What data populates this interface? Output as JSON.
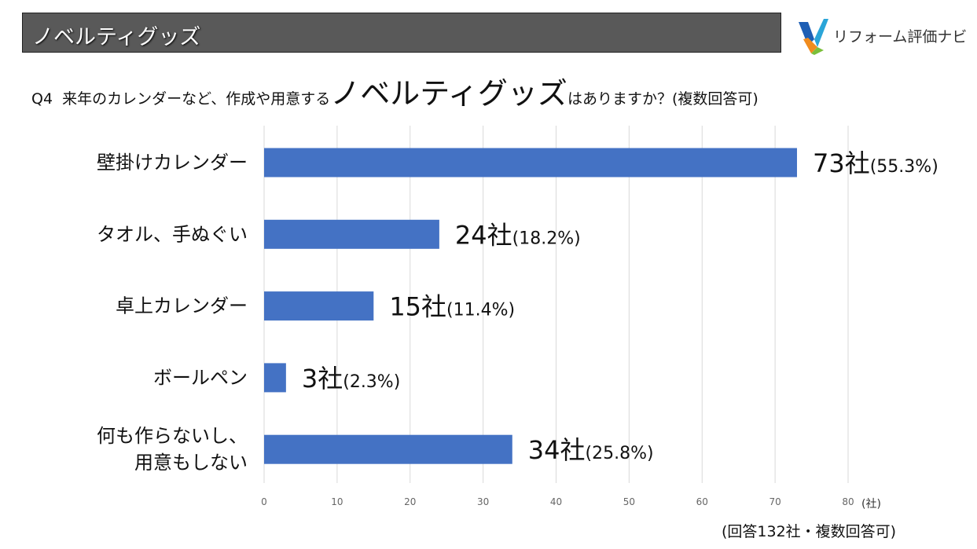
{
  "header": {
    "title": "ノベルティグッズ"
  },
  "logo": {
    "text": "リフォーム評価ナビ"
  },
  "question": {
    "prefix": "Q4",
    "text_before": "来年のカレンダーなど、作成や用意する",
    "emphasis": "ノベルティグッズ",
    "text_after": "はありますか？(複数回答可)"
  },
  "footnote": "(回答132社・複数回答可)",
  "colors": {
    "bar": "#4472C4",
    "header_bg": "#595959",
    "grid": "#D9D9D9"
  },
  "chart_data": {
    "type": "bar",
    "orientation": "horizontal",
    "categories": [
      "壁掛けカレンダー",
      "タオル、手ぬぐい",
      "卓上カレンダー",
      "ボールペン",
      "何も作らないし、\n用意もしない"
    ],
    "values": [
      73,
      24,
      15,
      3,
      34
    ],
    "data_labels": [
      {
        "count": "73社",
        "pct": "(55.3%)"
      },
      {
        "count": "24社",
        "pct": "(18.2%)"
      },
      {
        "count": "15社",
        "pct": "(11.4%)"
      },
      {
        "count": "3社",
        "pct": "(2.3%)"
      },
      {
        "count": "34社",
        "pct": "(25.8%)"
      }
    ],
    "xlim": [
      0,
      80
    ],
    "xticks": [
      "0",
      "10",
      "20",
      "30",
      "40",
      "50",
      "60",
      "70",
      "80"
    ],
    "xunit": "(社)",
    "grid": true
  }
}
